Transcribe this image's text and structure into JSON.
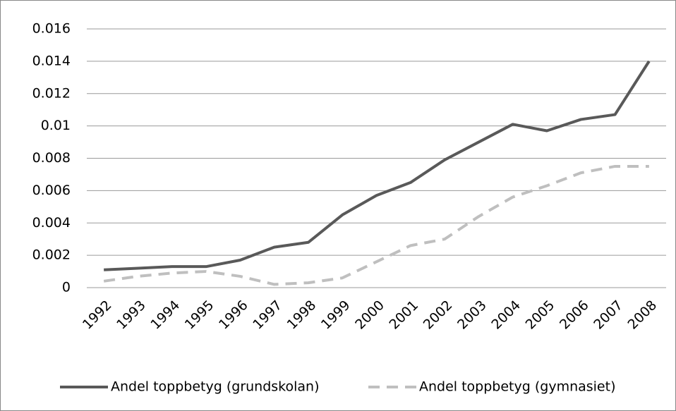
{
  "chart_data": {
    "type": "line",
    "categories": [
      "1992",
      "1993",
      "1994",
      "1995",
      "1996",
      "1997",
      "1998",
      "1999",
      "2000",
      "2001",
      "2002",
      "2003",
      "2004",
      "2005",
      "2006",
      "2007",
      "2008"
    ],
    "series": [
      {
        "name": "Andel toppbetyg (grundskolan)",
        "color": "#595959",
        "line_style": "solid",
        "values": [
          0.0011,
          0.0012,
          0.0013,
          0.0013,
          0.0017,
          0.0025,
          0.0028,
          0.0045,
          0.0057,
          0.0065,
          0.0079,
          0.009,
          0.0101,
          0.0097,
          0.0104,
          0.0107,
          0.014
        ]
      },
      {
        "name": "Andel toppbetyg (gymnasiet)",
        "color": "#bfbfbf",
        "line_style": "dashed",
        "values": [
          0.0004,
          0.0007,
          0.0009,
          0.001,
          0.0007,
          0.0002,
          0.0003,
          0.0006,
          0.0016,
          0.0026,
          0.003,
          0.0044,
          0.0056,
          0.0063,
          0.0071,
          0.0075,
          0.0075
        ]
      }
    ],
    "ylim": [
      0,
      0.016
    ],
    "yticks": [
      0,
      0.002,
      0.004,
      0.006,
      0.008,
      0.01,
      0.012,
      0.014,
      0.016
    ],
    "grid": true,
    "legend": "bottom"
  }
}
